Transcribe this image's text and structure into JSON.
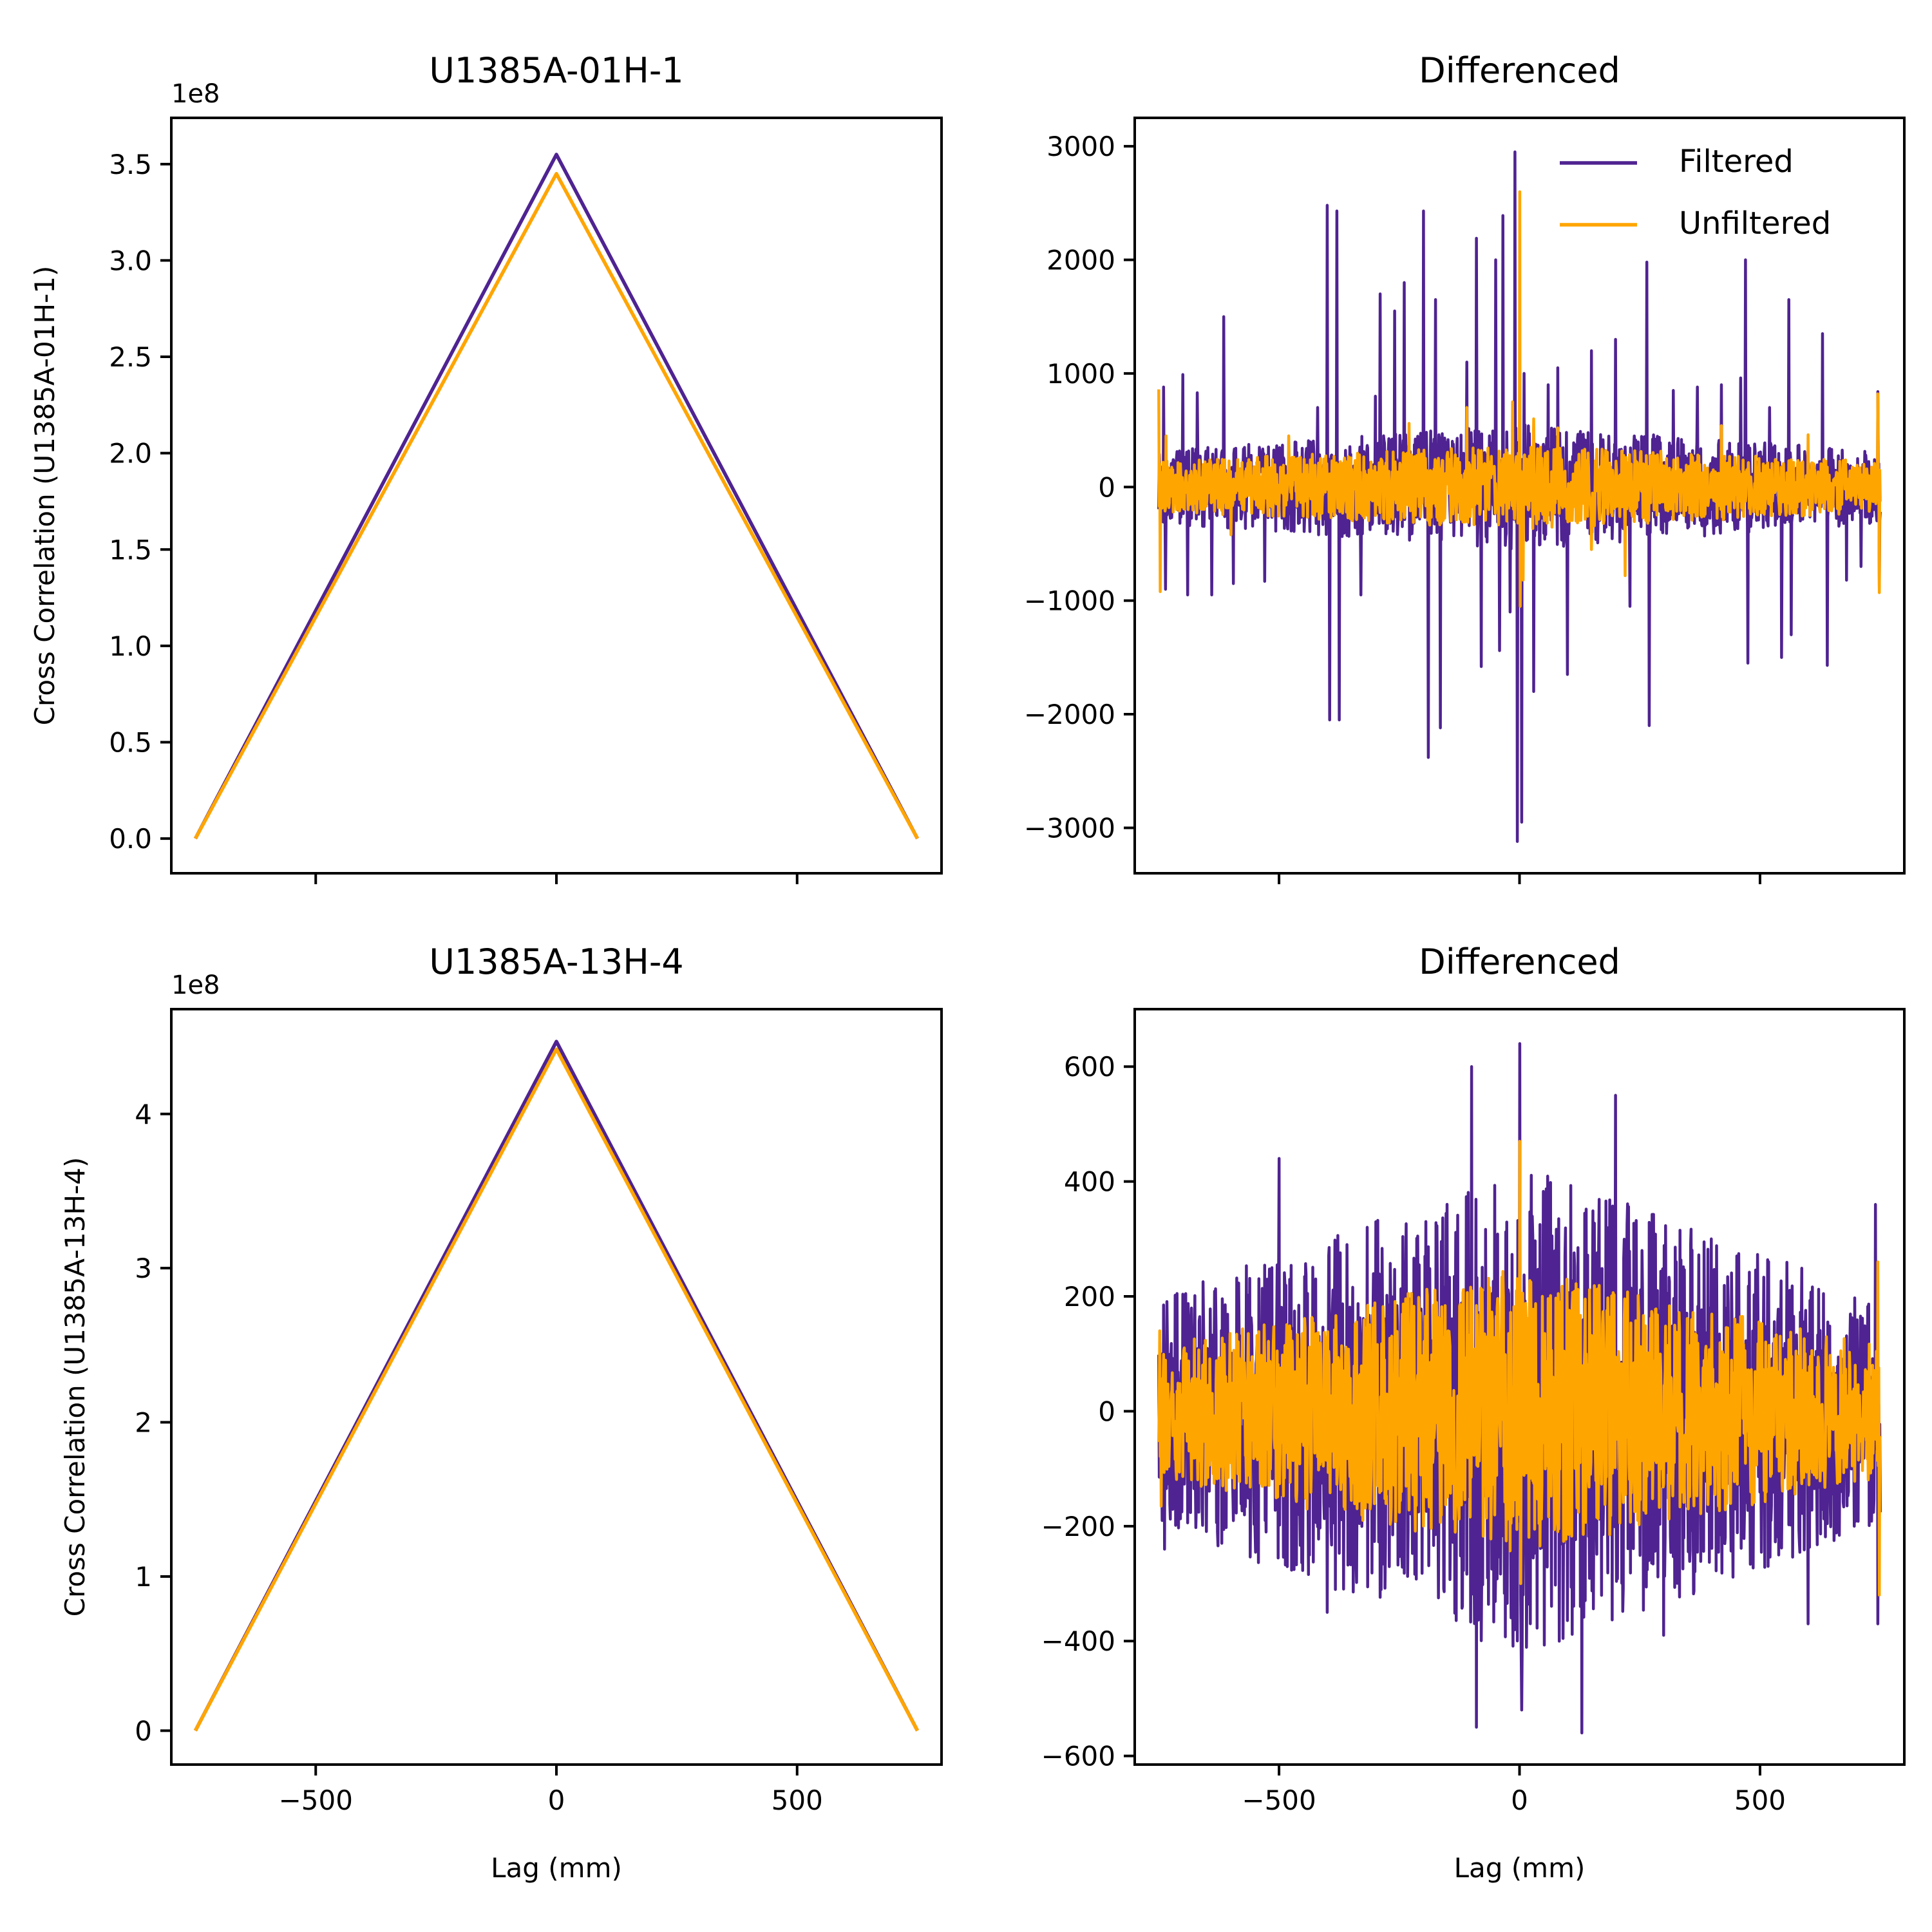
{
  "figure": {
    "colors": {
      "filtered": "#4f2391",
      "unfiltered": "#ffa500"
    },
    "legend": {
      "filtered": "Filtered",
      "unfiltered": "Unfiltered",
      "placement": "upper-right"
    }
  },
  "chart_data": [
    {
      "id": "cc1",
      "type": "line",
      "title": "U1385A-01H-1",
      "xlabel": "",
      "ylabel": "Cross Correlation (U1385A-01H-1)",
      "y_offset_label": "1e8",
      "xlim": [
        -800,
        800
      ],
      "ylim": [
        -0.18,
        3.74
      ],
      "xticks": [
        -500,
        0,
        500
      ],
      "show_xtick_labels": false,
      "yticks": [
        0.0,
        0.5,
        1.0,
        1.5,
        2.0,
        2.5,
        3.0,
        3.5
      ],
      "ytick_labels": [
        "0.0",
        "0.5",
        "1.0",
        "1.5",
        "2.0",
        "2.5",
        "3.0",
        "3.5"
      ],
      "series": [
        {
          "name": "Filtered",
          "color_key": "filtered",
          "shape": "triangle",
          "x": [
            -750,
            0,
            750
          ],
          "y": [
            0.0,
            3.55,
            0.0
          ]
        },
        {
          "name": "Unfiltered",
          "color_key": "unfiltered",
          "shape": "triangle",
          "x": [
            -750,
            0,
            750
          ],
          "y": [
            0.0,
            3.45,
            0.0
          ]
        }
      ]
    },
    {
      "id": "d1",
      "type": "line",
      "title": "Differenced",
      "xlabel": "",
      "ylabel": "",
      "xlim": [
        -800,
        800
      ],
      "ylim": [
        -3400,
        3250
      ],
      "xticks": [
        -500,
        0,
        500
      ],
      "show_xtick_labels": false,
      "yticks": [
        -3000,
        -2000,
        -1000,
        0,
        1000,
        2000,
        3000
      ],
      "ytick_labels": [
        "−3000",
        "−2000",
        "−1000",
        "0",
        "1000",
        "2000",
        "3000"
      ],
      "show_legend": true,
      "series": [
        {
          "name": "Filtered",
          "color_key": "filtered",
          "shape": "noise",
          "x_range": [
            -750,
            750
          ],
          "n": 1500,
          "seed": 11,
          "base_center": 550,
          "base_edge": 320,
          "spikes": [
            [
              -740,
              880
            ],
            [
              -736,
              -900
            ],
            [
              -700,
              990
            ],
            [
              -690,
              -950
            ],
            [
              -670,
              830
            ],
            [
              -640,
              -950
            ],
            [
              -615,
              1500
            ],
            [
              -595,
              -850
            ],
            [
              -530,
              -830
            ],
            [
              -420,
              700
            ],
            [
              -400,
              2480
            ],
            [
              -395,
              -2050
            ],
            [
              -380,
              2430
            ],
            [
              -375,
              -2050
            ],
            [
              -330,
              -950
            ],
            [
              -300,
              800
            ],
            [
              -290,
              1700
            ],
            [
              -260,
              1550
            ],
            [
              -240,
              1800
            ],
            [
              -200,
              2430
            ],
            [
              -190,
              -2380
            ],
            [
              -175,
              1650
            ],
            [
              -165,
              -2120
            ],
            [
              -110,
              1100
            ],
            [
              -90,
              2190
            ],
            [
              -80,
              -1580
            ],
            [
              -50,
              2000
            ],
            [
              -42,
              -1440
            ],
            [
              -35,
              2390
            ],
            [
              -20,
              -1100
            ],
            [
              -10,
              2950
            ],
            [
              -5,
              -3120
            ],
            [
              5,
              -2950
            ],
            [
              10,
              1000
            ],
            [
              30,
              -1800
            ],
            [
              60,
              900
            ],
            [
              80,
              1050
            ],
            [
              100,
              -1650
            ],
            [
              150,
              1200
            ],
            [
              200,
              1300
            ],
            [
              230,
              -1050
            ],
            [
              265,
              1980
            ],
            [
              270,
              -2100
            ],
            [
              320,
              850
            ],
            [
              370,
              880
            ],
            [
              420,
              900
            ],
            [
              460,
              960
            ],
            [
              470,
              2000
            ],
            [
              475,
              -1550
            ],
            [
              520,
              700
            ],
            [
              545,
              -1500
            ],
            [
              560,
              1650
            ],
            [
              565,
              -1300
            ],
            [
              630,
              1350
            ],
            [
              640,
              -1570
            ],
            [
              680,
              -820
            ],
            [
              710,
              -700
            ],
            [
              745,
              840
            ],
            [
              748,
              -880
            ]
          ]
        },
        {
          "name": "Unfiltered",
          "color_key": "unfiltered",
          "shape": "noise",
          "x_range": [
            -750,
            750
          ],
          "n": 1500,
          "seed": 23,
          "base_center": 370,
          "base_edge": 230,
          "spikes": [
            [
              -750,
              860
            ],
            [
              -747,
              -920
            ],
            [
              -735,
              450
            ],
            [
              -600,
              -420
            ],
            [
              -480,
              450
            ],
            [
              -230,
              560
            ],
            [
              -110,
              700
            ],
            [
              -15,
              750
            ],
            [
              0,
              2600
            ],
            [
              2,
              -1050
            ],
            [
              8,
              -820
            ],
            [
              30,
              600
            ],
            [
              80,
              520
            ],
            [
              150,
              -550
            ],
            [
              220,
              -780
            ],
            [
              420,
              540
            ],
            [
              600,
              460
            ],
            [
              745,
              820
            ],
            [
              748,
              -930
            ]
          ]
        }
      ]
    },
    {
      "id": "cc2",
      "type": "line",
      "title": "U1385A-13H-4",
      "xlabel": "Lag (mm)",
      "ylabel": "Cross Correlation (U1385A-13H-4)",
      "y_offset_label": "1e8",
      "xlim": [
        -800,
        800
      ],
      "ylim": [
        -0.22,
        4.68
      ],
      "xticks": [
        -500,
        0,
        500
      ],
      "xtick_labels": [
        "−500",
        "0",
        "500"
      ],
      "show_xtick_labels": true,
      "yticks": [
        0,
        1,
        2,
        3,
        4
      ],
      "ytick_labels": [
        "0",
        "1",
        "2",
        "3",
        "4"
      ],
      "series": [
        {
          "name": "Filtered",
          "color_key": "filtered",
          "shape": "triangle",
          "x": [
            -750,
            0,
            750
          ],
          "y": [
            0.0,
            4.47,
            0.0
          ]
        },
        {
          "name": "Unfiltered",
          "color_key": "unfiltered",
          "shape": "triangle",
          "x": [
            -750,
            0,
            750
          ],
          "y": [
            0.0,
            4.42,
            0.0
          ]
        }
      ]
    },
    {
      "id": "d2",
      "type": "line",
      "title": "Differenced",
      "xlabel": "Lag (mm)",
      "ylabel": "",
      "xlim": [
        -800,
        800
      ],
      "ylim": [
        -615,
        700
      ],
      "xticks": [
        -500,
        0,
        500
      ],
      "xtick_labels": [
        "−500",
        "0",
        "500"
      ],
      "show_xtick_labels": true,
      "yticks": [
        -600,
        -400,
        -200,
        0,
        200,
        400,
        600
      ],
      "ytick_labels": [
        "−600",
        "−400",
        "−200",
        "0",
        "200",
        "400",
        "600"
      ],
      "series": [
        {
          "name": "Filtered",
          "color_key": "filtered",
          "shape": "noise",
          "x_range": [
            -750,
            750
          ],
          "n": 1500,
          "seed": 37,
          "base_center": 430,
          "base_edge": 200,
          "spikes": [
            [
              -740,
              185
            ],
            [
              -738,
              -240
            ],
            [
              -500,
              440
            ],
            [
              -400,
              -350
            ],
            [
              -100,
              600
            ],
            [
              -90,
              -550
            ],
            [
              0,
              640
            ],
            [
              5,
              -520
            ],
            [
              130,
              -560
            ],
            [
              200,
              550
            ],
            [
              300,
              -390
            ],
            [
              600,
              -370
            ],
            [
              740,
              360
            ],
            [
              745,
              -370
            ]
          ]
        },
        {
          "name": "Unfiltered",
          "color_key": "unfiltered",
          "shape": "noise",
          "x_range": [
            -750,
            750
          ],
          "n": 1500,
          "seed": 53,
          "base_center": 250,
          "base_edge": 115,
          "spikes": [
            [
              -748,
              140
            ],
            [
              -745,
              -165
            ],
            [
              0,
              470
            ],
            [
              3,
              -300
            ],
            [
              745,
              260
            ],
            [
              748,
              -320
            ]
          ]
        }
      ]
    }
  ]
}
